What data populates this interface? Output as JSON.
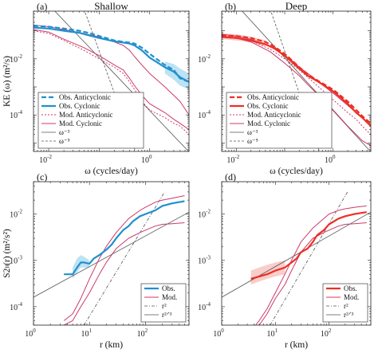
{
  "figure": {
    "colors": {
      "blue": "#1f90cf",
      "red": "#ee2e24",
      "model": "#cc3a6b",
      "slope": "#555555",
      "shade_blue": "#9fd6ef",
      "shade_red": "#f6b8b3"
    }
  },
  "chart_data": [
    {
      "panel": "(a)",
      "title": "Shallow",
      "type": "line",
      "xscale": "log",
      "yscale": "log",
      "xlim": [
        0.005,
        6
      ],
      "ylim": [
        5e-06,
        0.5
      ],
      "xticks": [
        {
          "v": 0.01,
          "t": "10"
        },
        {
          "v": 1,
          "t": "10"
        }
      ],
      "xtick_exp": [
        "-2",
        "0"
      ],
      "yticks": [
        {
          "v": 0.0001,
          "t": "10"
        },
        {
          "v": 0.01,
          "t": "10"
        }
      ],
      "ytick_exp": [
        "-4",
        "-2"
      ],
      "xlabel": "ω (cycles/day)",
      "ylabel": "KE (ω) (m²/s)",
      "legend": [
        "Obs. Anticyclonic",
        "Obs. Cyclonic",
        "Mod. Anticyclonic",
        "Mod. Cyclonic",
        "ω⁻³",
        "ω⁻⁵"
      ],
      "series": [
        {
          "name": "Obs. Anticyclonic",
          "style": "dashed-blue",
          "x": [
            0.005,
            0.01,
            0.02,
            0.04,
            0.06,
            0.1,
            0.2,
            0.3,
            0.4,
            0.5,
            0.7,
            1,
            2,
            3,
            4,
            6
          ],
          "y": [
            0.15,
            0.14,
            0.12,
            0.1,
            0.085,
            0.065,
            0.045,
            0.04,
            0.038,
            0.035,
            0.025,
            0.015,
            0.006,
            0.004,
            0.002,
            0.0015
          ]
        },
        {
          "name": "Obs. Cyclonic",
          "style": "solid-blue",
          "x": [
            0.005,
            0.01,
            0.02,
            0.04,
            0.06,
            0.1,
            0.2,
            0.3,
            0.4,
            0.5,
            0.7,
            1,
            2,
            3,
            4,
            6
          ],
          "y": [
            0.13,
            0.12,
            0.1,
            0.085,
            0.07,
            0.055,
            0.042,
            0.038,
            0.035,
            0.03,
            0.02,
            0.011,
            0.005,
            0.0035,
            0.0022,
            0.0015
          ]
        },
        {
          "name": "Mod. Anticyclonic",
          "style": "dotted-model",
          "x": [
            0.005,
            0.01,
            0.02,
            0.05,
            0.1,
            0.2,
            0.3,
            0.4,
            0.5,
            0.7,
            1,
            2,
            3,
            4,
            6
          ],
          "y": [
            0.1,
            0.08,
            0.045,
            0.02,
            0.01,
            0.005,
            0.003,
            0.0015,
            0.0008,
            0.0003,
            0.00015,
            8e-05,
            5e-05,
            4e-05,
            2e-05
          ]
        },
        {
          "name": "Mod. Cyclonic",
          "style": "solid-model",
          "x": [
            0.005,
            0.01,
            0.02,
            0.05,
            0.1,
            0.2,
            0.3,
            0.4,
            0.5,
            0.7,
            1,
            2,
            3,
            4,
            6
          ],
          "y": [
            0.11,
            0.09,
            0.05,
            0.025,
            0.013,
            0.006,
            0.004,
            0.002,
            0.0011,
            0.0005,
            0.00025,
            0.00012,
            7e-05,
            5e-05,
            3e-05
          ]
        },
        {
          "name": "",
          "style": "solid-model",
          "x": [
            0.005,
            0.01,
            0.02,
            0.05,
            0.1,
            0.2,
            0.3,
            0.4,
            0.5,
            0.7,
            1,
            2,
            4,
            6
          ],
          "y": [
            0.16,
            0.14,
            0.11,
            0.08,
            0.06,
            0.04,
            0.03,
            0.02,
            0.012,
            0.006,
            0.003,
            0.001,
            0.0003,
            0.0001
          ]
        },
        {
          "name": "ω⁻³",
          "style": "slope-solid",
          "x": [
            0.012,
            6
          ],
          "y": [
            0.6,
            4.8e-06
          ]
        },
        {
          "name": "ω⁻⁵",
          "style": "slope-dashed",
          "x": [
            0.05,
            0.55
          ],
          "y": [
            0.6,
            3.8e-06
          ]
        }
      ],
      "band": {
        "x": [
          2,
          3,
          4,
          6
        ],
        "lo": [
          0.003,
          0.0018,
          0.0011,
          0.0008
        ],
        "hi": [
          0.008,
          0.0065,
          0.0045,
          0.003
        ]
      }
    },
    {
      "panel": "(b)",
      "title": "Deep",
      "type": "line",
      "xscale": "log",
      "yscale": "log",
      "xlim": [
        0.005,
        6
      ],
      "ylim": [
        5e-06,
        0.5
      ],
      "xticks": [
        {
          "v": 0.01,
          "t": "10"
        },
        {
          "v": 1,
          "t": "10"
        }
      ],
      "xtick_exp": [
        "-2",
        "0"
      ],
      "yticks": [
        {
          "v": 0.0001,
          "t": "10"
        },
        {
          "v": 0.01,
          "t": "10"
        }
      ],
      "ytick_exp": [
        "-4",
        "-2"
      ],
      "xlabel": "ω (cycles/day)",
      "ylabel": "",
      "legend": [
        "Obs. Anticyclonic",
        "Obs. Cyclonic",
        "Mod. Anticyclonic",
        "Mod. Cyclonic",
        "ω⁻³",
        "ω⁻⁵"
      ],
      "series": [
        {
          "name": "Obs. Anticyclonic",
          "style": "dashed-red",
          "x": [
            0.005,
            0.01,
            0.02,
            0.04,
            0.06,
            0.1,
            0.15,
            0.2,
            0.3,
            0.5,
            1,
            2,
            3,
            4,
            6
          ],
          "y": [
            0.07,
            0.065,
            0.055,
            0.04,
            0.028,
            0.015,
            0.008,
            0.005,
            0.0028,
            0.0016,
            0.0008,
            0.0003,
            0.00015,
            9e-05,
            5e-05
          ]
        },
        {
          "name": "Obs. Cyclonic",
          "style": "solid-red",
          "x": [
            0.005,
            0.01,
            0.02,
            0.04,
            0.06,
            0.1,
            0.15,
            0.2,
            0.3,
            0.5,
            1,
            2,
            3,
            4,
            6
          ],
          "y": [
            0.06,
            0.055,
            0.045,
            0.033,
            0.024,
            0.013,
            0.007,
            0.0045,
            0.0025,
            0.0015,
            0.0007,
            0.00025,
            0.00012,
            8e-05,
            4e-05
          ]
        },
        {
          "name": "Mod. Anticyclonic",
          "style": "dotted-model",
          "x": [
            0.005,
            0.01,
            0.02,
            0.05,
            0.1,
            0.15,
            0.2,
            0.3,
            0.5,
            1,
            2,
            3,
            4,
            6
          ],
          "y": [
            0.07,
            0.06,
            0.045,
            0.022,
            0.01,
            0.006,
            0.004,
            0.0022,
            0.001,
            0.00035,
            0.00012,
            7e-05,
            4e-05,
            2e-05
          ]
        },
        {
          "name": "Mod. Cyclonic",
          "style": "solid-model",
          "x": [
            0.005,
            0.01,
            0.02,
            0.05,
            0.1,
            0.15,
            0.2,
            0.3,
            0.5,
            1,
            2,
            3,
            4,
            6
          ],
          "y": [
            0.075,
            0.065,
            0.05,
            0.028,
            0.013,
            0.008,
            0.005,
            0.003,
            0.0015,
            0.0006,
            0.00022,
            0.00012,
            8e-05,
            4e-05
          ]
        },
        {
          "name": "",
          "style": "solid-model",
          "x": [
            0.005,
            0.01,
            0.02,
            0.05,
            0.1,
            0.2,
            0.3,
            0.5,
            1,
            2,
            3,
            4,
            6
          ],
          "y": [
            0.065,
            0.055,
            0.04,
            0.018,
            0.007,
            0.0025,
            0.0012,
            0.0005,
            0.00015,
            4e-05,
            2e-05,
            1.2e-05,
            8e-06
          ]
        },
        {
          "name": "ω⁻³",
          "style": "slope-solid",
          "x": [
            0.012,
            6
          ],
          "y": [
            0.6,
            4.8e-06
          ]
        },
        {
          "name": "ω⁻⁵",
          "style": "slope-dashed",
          "x": [
            0.05,
            0.55
          ],
          "y": [
            0.6,
            3.8e-06
          ]
        }
      ],
      "band": {
        "x": [
          0.005,
          0.01,
          0.02,
          0.04
        ],
        "lo": [
          0.05,
          0.045,
          0.038,
          0.028
        ],
        "hi": [
          0.08,
          0.075,
          0.062,
          0.045
        ]
      }
    },
    {
      "panel": "(c)",
      "title": "",
      "type": "line",
      "xscale": "log",
      "yscale": "log",
      "xlim": [
        1,
        600
      ],
      "ylim": [
        4e-05,
        0.05
      ],
      "xticks": [
        {
          "v": 1,
          "t": "10"
        },
        {
          "v": 10,
          "t": "10"
        },
        {
          "v": 100,
          "t": "10"
        }
      ],
      "xtick_exp": [
        "0",
        "1",
        "2"
      ],
      "yticks": [
        {
          "v": 0.0001,
          "t": "10"
        },
        {
          "v": 0.001,
          "t": "10"
        },
        {
          "v": 0.01,
          "t": "10"
        }
      ],
      "ytick_exp": [
        "-4",
        "-3",
        "-2"
      ],
      "xlabel": "r (km)",
      "ylabel": "S2ₗₗ(r) (m²/s²)",
      "legend": [
        "Obs.",
        "Mod.",
        "r²",
        "r²ᐟ³"
      ],
      "series": [
        {
          "name": "Obs.",
          "style": "solid-blue",
          "x": [
            3.5,
            5,
            6,
            7,
            8,
            10,
            12,
            15,
            20,
            25,
            30,
            40,
            50,
            60,
            80,
            100,
            150,
            200,
            300,
            500
          ],
          "y": [
            0.0005,
            0.0005,
            0.0007,
            0.0009,
            0.0009,
            0.00085,
            0.0011,
            0.0013,
            0.0017,
            0.0022,
            0.003,
            0.0045,
            0.0055,
            0.007,
            0.009,
            0.01,
            0.012,
            0.015,
            0.017,
            0.019
          ]
        },
        {
          "name": "Mod.",
          "style": "solid-model",
          "x": [
            3.5,
            5,
            7,
            10,
            15,
            20,
            30,
            50,
            80,
            100,
            150,
            200,
            300,
            500
          ],
          "y": [
            5e-05,
            7e-05,
            0.00015,
            0.0004,
            0.0011,
            0.002,
            0.004,
            0.008,
            0.012,
            0.014,
            0.018,
            0.02,
            0.022,
            0.025
          ]
        },
        {
          "name": "",
          "style": "solid-model",
          "x": [
            3.5,
            5,
            7,
            10,
            15,
            20,
            30,
            50,
            80,
            100,
            150,
            200,
            300,
            500
          ],
          "y": [
            4e-05,
            5e-05,
            0.0001,
            0.0002,
            0.0005,
            0.0009,
            0.0018,
            0.003,
            0.004,
            0.0045,
            0.0055,
            0.006,
            0.0062,
            0.0065
          ]
        },
        {
          "name": "r²",
          "style": "slope-dashdot",
          "x": [
            8,
            220
          ],
          "y": [
            4e-05,
            0.03
          ]
        },
        {
          "name": "r²ᐟ³",
          "style": "slope-thin",
          "x": [
            1,
            600
          ],
          "y": [
            0.00016,
            0.011
          ]
        }
      ],
      "band": {
        "x": [
          5,
          6,
          7,
          8,
          10
        ],
        "lo": [
          0.0004,
          0.00055,
          0.0007,
          0.0007,
          0.0007
        ],
        "hi": [
          0.0007,
          0.0011,
          0.0013,
          0.0012,
          0.001
        ]
      }
    },
    {
      "panel": "(d)",
      "title": "",
      "type": "line",
      "xscale": "log",
      "yscale": "log",
      "xlim": [
        1,
        600
      ],
      "ylim": [
        4e-05,
        0.05
      ],
      "xticks": [
        {
          "v": 1,
          "t": "10"
        },
        {
          "v": 10,
          "t": "10"
        },
        {
          "v": 100,
          "t": "10"
        }
      ],
      "xtick_exp": [
        "0",
        "1",
        "2"
      ],
      "yticks": [
        {
          "v": 0.0001,
          "t": "10"
        },
        {
          "v": 0.001,
          "t": "10"
        },
        {
          "v": 0.01,
          "t": "10"
        }
      ],
      "ytick_exp": [
        "-4",
        "-3",
        "-2"
      ],
      "xlabel": "r (km)",
      "ylabel": "",
      "legend": [
        "Obs.",
        "Mod.",
        "r²",
        "r²ᐟ³"
      ],
      "series": [
        {
          "name": "Obs.",
          "style": "solid-red",
          "x": [
            3.5,
            5,
            7,
            10,
            15,
            20,
            25,
            30,
            40,
            50,
            60,
            80,
            100,
            150,
            200,
            300,
            500
          ],
          "y": [
            0.0004,
            0.00045,
            0.0005,
            0.0006,
            0.0007,
            0.0009,
            0.0011,
            0.0015,
            0.0018,
            0.0025,
            0.0035,
            0.0045,
            0.006,
            0.008,
            0.009,
            0.01,
            0.011
          ]
        },
        {
          "name": "Mod.",
          "style": "solid-model",
          "x": [
            3.5,
            5,
            7,
            10,
            15,
            20,
            30,
            50,
            80,
            100,
            150,
            200,
            300,
            500
          ],
          "y": [
            3e-05,
            5e-05,
            9e-05,
            0.0002,
            0.0005,
            0.001,
            0.0025,
            0.005,
            0.008,
            0.01,
            0.012,
            0.013,
            0.014,
            0.015
          ]
        },
        {
          "name": "",
          "style": "solid-model",
          "x": [
            3.5,
            5,
            7,
            10,
            15,
            20,
            30,
            50,
            80,
            100,
            150,
            200,
            300,
            500
          ],
          "y": [
            3e-05,
            4e-05,
            7e-05,
            0.00015,
            0.0003,
            0.0006,
            0.0015,
            0.003,
            0.004,
            0.0045,
            0.0055,
            0.006,
            0.0062,
            0.0065
          ]
        },
        {
          "name": "r²",
          "style": "slope-dashdot",
          "x": [
            8,
            220
          ],
          "y": [
            4e-05,
            0.03
          ]
        },
        {
          "name": "r²ᐟ³",
          "style": "slope-thin",
          "x": [
            1,
            600
          ],
          "y": [
            0.00016,
            0.011
          ]
        }
      ],
      "band": {
        "x": [
          3.5,
          5,
          7,
          10,
          15
        ],
        "lo": [
          0.0003,
          0.00035,
          0.0004,
          0.00045,
          0.0005
        ],
        "hi": [
          0.0006,
          0.0007,
          0.0008,
          0.0009,
          0.001
        ]
      }
    }
  ]
}
